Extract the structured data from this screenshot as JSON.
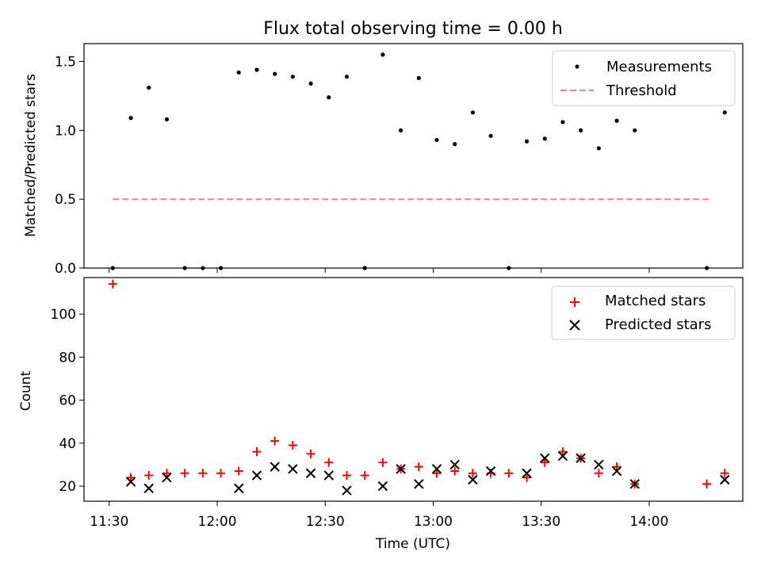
{
  "title": "Flux total observing time = 0.00 h",
  "colors": {
    "measurements": "#000000",
    "threshold": "#ff7f7f",
    "matched": "#ff0000",
    "predicted": "#000000"
  },
  "chart_data": [
    {
      "type": "scatter",
      "panel": "top",
      "ylabel": "Matched/Predicted stars",
      "ylim": [
        0.0,
        1.63
      ],
      "yticks": [
        0.0,
        0.5,
        1.0,
        1.5
      ],
      "ytick_labels": [
        "0.0",
        "0.5",
        "1.0",
        "1.5"
      ],
      "legend_position": "upper right",
      "series": [
        {
          "name": "Measurements",
          "marker": "dot",
          "x": [
            "11:31",
            "11:36",
            "11:41",
            "11:46",
            "11:51",
            "11:56",
            "12:01",
            "12:06",
            "12:11",
            "12:16",
            "12:21",
            "12:26",
            "12:31",
            "12:36",
            "12:41",
            "12:46",
            "12:51",
            "12:56",
            "13:01",
            "13:06",
            "13:11",
            "13:16",
            "13:21",
            "13:26",
            "13:31",
            "13:36",
            "13:41",
            "13:46",
            "13:51",
            "13:56",
            "14:16",
            "14:21"
          ],
          "values": [
            0.0,
            1.09,
            1.31,
            1.08,
            0.0,
            0.0,
            0.0,
            1.42,
            1.44,
            1.41,
            1.39,
            1.34,
            1.24,
            1.39,
            0.0,
            1.55,
            1.0,
            1.38,
            0.93,
            0.9,
            1.13,
            0.96,
            0.0,
            0.92,
            0.94,
            1.06,
            1.0,
            0.87,
            1.07,
            1.0,
            0.0,
            1.13
          ]
        },
        {
          "name": "Threshold",
          "style": "dashed",
          "x": [
            "11:31",
            "14:17"
          ],
          "values": [
            0.5,
            0.5
          ]
        }
      ]
    },
    {
      "type": "scatter",
      "panel": "bottom",
      "ylabel": "Count",
      "xlabel": "Time (UTC)",
      "ylim": [
        13,
        117
      ],
      "yticks": [
        20,
        40,
        60,
        80,
        100
      ],
      "ytick_labels": [
        "20",
        "40",
        "60",
        "80",
        "100"
      ],
      "xlim": [
        "11:23",
        "14:26"
      ],
      "xticks": [
        "11:30",
        "12:00",
        "12:30",
        "13:00",
        "13:30",
        "14:00"
      ],
      "xtick_labels": [
        "11:30",
        "12:00",
        "12:30",
        "13:00",
        "13:30",
        "14:00"
      ],
      "legend_position": "upper right",
      "series": [
        {
          "name": "Matched stars",
          "marker": "plus",
          "x": [
            "11:31",
            "11:36",
            "11:41",
            "11:46",
            "11:51",
            "11:56",
            "12:01",
            "12:06",
            "12:11",
            "12:16",
            "12:21",
            "12:26",
            "12:31",
            "12:36",
            "12:41",
            "12:46",
            "12:51",
            "12:56",
            "13:01",
            "13:06",
            "13:11",
            "13:16",
            "13:21",
            "13:26",
            "13:31",
            "13:36",
            "13:41",
            "13:46",
            "13:51",
            "13:56",
            "14:16",
            "14:21"
          ],
          "values": [
            114,
            24,
            25,
            26,
            26,
            26,
            26,
            27,
            36,
            41,
            39,
            35,
            31,
            25,
            25,
            31,
            28,
            29,
            26,
            27,
            26,
            26,
            26,
            24,
            31,
            36,
            33,
            26,
            29,
            21,
            21,
            26
          ]
        },
        {
          "name": "Predicted stars",
          "marker": "x",
          "x": [
            "11:36",
            "11:41",
            "11:46",
            "12:06",
            "12:11",
            "12:16",
            "12:21",
            "12:26",
            "12:31",
            "12:36",
            "12:46",
            "12:51",
            "12:56",
            "13:01",
            "13:06",
            "13:11",
            "13:16",
            "13:26",
            "13:31",
            "13:36",
            "13:41",
            "13:46",
            "13:51",
            "13:56",
            "14:21"
          ],
          "values": [
            22,
            19,
            24,
            19,
            25,
            29,
            28,
            26,
            25,
            18,
            20,
            28,
            21,
            28,
            30,
            23,
            27,
            26,
            33,
            34,
            33,
            30,
            27,
            21,
            23
          ]
        }
      ]
    }
  ]
}
